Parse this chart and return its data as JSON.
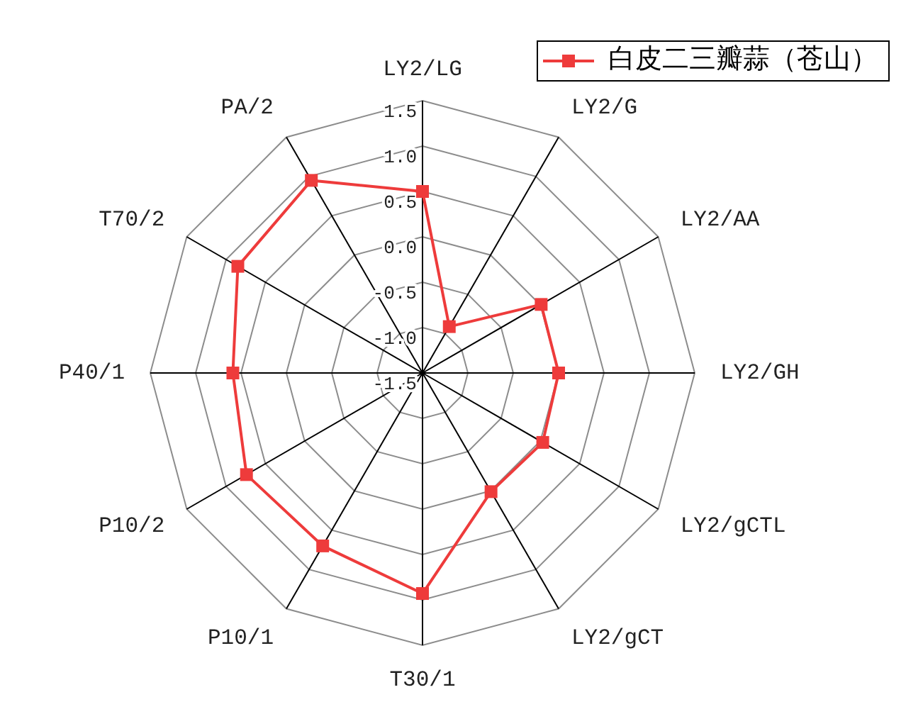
{
  "chart_data": {
    "type": "radar",
    "categories": [
      "LY2/LG",
      "LY2/G",
      "LY2/AA",
      "LY2/GH",
      "LY2/gCTL",
      "LY2/gCT",
      "T30/1",
      "P10/1",
      "P10/2",
      "P40/1",
      "T70/2",
      "PA/2"
    ],
    "series": [
      {
        "name": "白皮二三瓣蒜（苍山）",
        "color": "#ee3b3b",
        "values": [
          0.5,
          -0.91,
          0.01,
          0.0,
          0.03,
          0.01,
          0.93,
          0.7,
          0.74,
          0.59,
          0.85,
          0.95
        ]
      }
    ],
    "ylim": [
      -1.5,
      1.5
    ],
    "yticks": [
      {
        "value": -1.5,
        "label": "-1.5"
      },
      {
        "value": -1.0,
        "label": "-1.0"
      },
      {
        "value": -0.5,
        "label": "-0.5"
      },
      {
        "value": 0,
        "label": "0.0"
      },
      {
        "value": 0.5,
        "label": "0.5"
      },
      {
        "value": 1.0,
        "label": "1.0"
      },
      {
        "value": 1.5,
        "label": "1.5"
      }
    ],
    "grid": true,
    "legend": "top right",
    "marker": "square",
    "line_style": "solid"
  }
}
